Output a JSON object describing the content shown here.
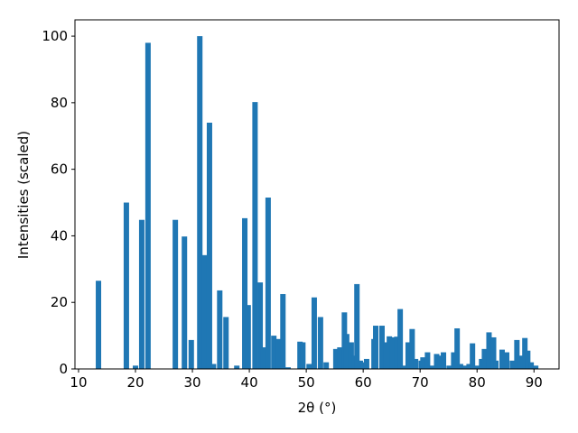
{
  "chart_data": {
    "type": "bar",
    "x_label": "2θ (°)",
    "y_label": "Intensities (scaled)",
    "color": "#1f77b4",
    "xlim": [
      9.37,
      94.4
    ],
    "ylim": [
      0,
      104.9
    ],
    "xticks": [
      10,
      20,
      30,
      40,
      50,
      60,
      70,
      80,
      90
    ],
    "yticks": [
      0,
      20,
      40,
      60,
      80,
      100
    ],
    "x": [
      13.5,
      18.4,
      20.0,
      21.1,
      22.2,
      27.0,
      28.6,
      29.8,
      31.3,
      32.1,
      33.0,
      33.7,
      34.8,
      35.9,
      37.8,
      39.2,
      39.8,
      41.0,
      41.9,
      42.5,
      43.3,
      44.3,
      45.2,
      45.9,
      46.8,
      48.9,
      49.4,
      50.5,
      51.4,
      52.5,
      53.5,
      55.2,
      55.9,
      56.7,
      57.1,
      57.9,
      58.4,
      58.9,
      59.5,
      60.0,
      60.6,
      61.9,
      62.2,
      63.3,
      64.0,
      64.6,
      65.2,
      65.9,
      66.5,
      67.1,
      67.9,
      68.6,
      69.2,
      70.2,
      70.5,
      71.3,
      72.1,
      72.9,
      73.5,
      74.1,
      75.1,
      75.9,
      76.5,
      77.1,
      77.8,
      78.6,
      79.2,
      80.0,
      80.8,
      81.3,
      82.1,
      82.9,
      83.3,
      84.4,
      85.2,
      86.2,
      87.0,
      87.6,
      88.4,
      88.9,
      89.5,
      90.3
    ],
    "values": [
      26.5,
      50,
      1,
      44.8,
      98,
      44.8,
      39.8,
      8.7,
      100,
      34.2,
      74,
      1.5,
      23.6,
      15.6,
      1,
      45.3,
      19.2,
      80.2,
      26,
      6.5,
      51.5,
      10,
      9,
      22.5,
      0.5,
      8.2,
      8,
      1.5,
      21.5,
      15.6,
      2,
      6,
      6.5,
      17,
      10.5,
      8,
      4,
      25.5,
      2.5,
      2,
      3,
      9,
      13,
      13,
      8,
      9.8,
      9.5,
      9.7,
      18,
      1,
      8,
      12,
      3,
      2.5,
      3.5,
      5,
      1,
      4.5,
      4,
      5,
      1,
      5,
      12.2,
      1.5,
      1,
      1.5,
      7.7,
      1,
      3,
      6,
      11,
      9.5,
      2.5,
      5.8,
      5,
      2.5,
      8.7,
      4,
      9.3,
      5.5,
      2,
      1
    ]
  }
}
